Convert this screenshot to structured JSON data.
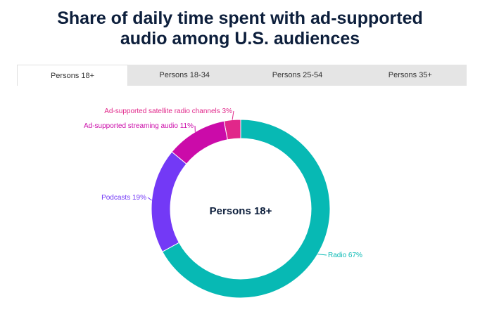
{
  "title_lines": [
    "Share of daily time spent with ad-supported",
    "audio among U.S. audiences"
  ],
  "tabs": [
    {
      "label": "Persons 18+",
      "active": true
    },
    {
      "label": "Persons 18-34",
      "active": false
    },
    {
      "label": "Persons 25-54",
      "active": false
    },
    {
      "label": "Persons 35+",
      "active": false
    }
  ],
  "chart_data": {
    "type": "pie",
    "variant": "donut",
    "center_label": "Persons 18+",
    "slices": [
      {
        "name": "Ad-supported satellite radio channels",
        "label": "Ad-supported satellite radio channels 3%",
        "value": 3,
        "color": "#e1278a"
      },
      {
        "name": "Radio",
        "label": "Radio 67%",
        "value": 67,
        "color": "#07b9b4"
      },
      {
        "name": "Podcasts",
        "label": "Podcasts 19%",
        "value": 19,
        "color": "#7339f6"
      },
      {
        "name": "Ad-supported streaming audio",
        "label": "Ad-supported streaming audio 11%",
        "value": 11,
        "color": "#cb0ba9"
      }
    ]
  }
}
